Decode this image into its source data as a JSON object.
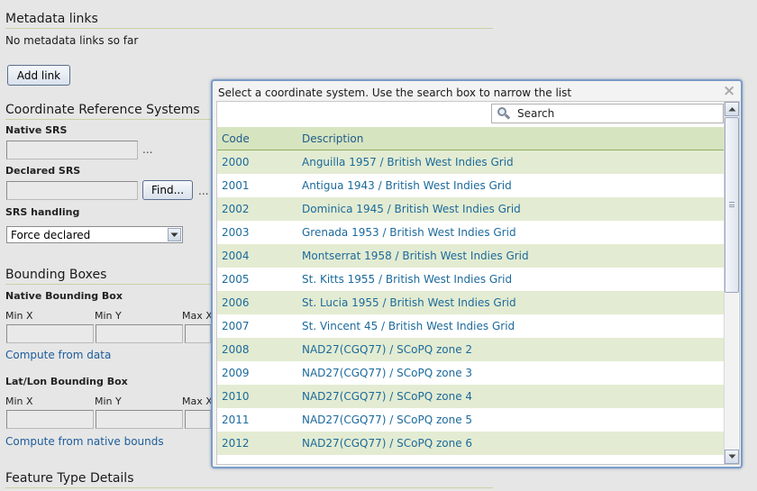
{
  "metadata": {
    "title": "Metadata links",
    "empty_text": "No metadata links so far",
    "add_button": "Add link"
  },
  "crs": {
    "title": "Coordinate Reference Systems",
    "native_label": "Native SRS",
    "native_suffix": "...",
    "declared_label": "Declared SRS",
    "find_button": "Find...",
    "declared_suffix": "...",
    "handling_label": "SRS handling",
    "handling_value": "Force declared"
  },
  "bbox": {
    "title": "Bounding Boxes",
    "native_label": "Native Bounding Box",
    "min_x": "Min X",
    "min_y": "Min Y",
    "max_x": "Max X",
    "compute_data_link": "Compute from data",
    "latlon_label": "Lat/Lon Bounding Box",
    "latlon_min_x": "Min X",
    "latlon_min_y": "Min Y",
    "latlon_max_x": "Max X",
    "compute_native_link": "Compute from native bounds"
  },
  "feature": {
    "title": "Feature Type Details"
  },
  "popup": {
    "title": "Select a coordinate system. Use the search box to narrow the list",
    "close_icon": "close-icon",
    "search_placeholder": "Search",
    "columns": {
      "code": "Code",
      "description": "Description"
    },
    "rows": [
      {
        "code": "2000",
        "description": "Anguilla 1957 / British West Indies Grid"
      },
      {
        "code": "2001",
        "description": "Antigua 1943 / British West Indies Grid"
      },
      {
        "code": "2002",
        "description": "Dominica 1945 / British West Indies Grid"
      },
      {
        "code": "2003",
        "description": "Grenada 1953 / British West Indies Grid"
      },
      {
        "code": "2004",
        "description": "Montserrat 1958 / British West Indies Grid"
      },
      {
        "code": "2005",
        "description": "St. Kitts 1955 / British West Indies Grid"
      },
      {
        "code": "2006",
        "description": "St. Lucia 1955 / British West Indies Grid"
      },
      {
        "code": "2007",
        "description": "St. Vincent 45 / British West Indies Grid"
      },
      {
        "code": "2008",
        "description": "NAD27(CGQ77) / SCoPQ zone 2"
      },
      {
        "code": "2009",
        "description": "NAD27(CGQ77) / SCoPQ zone 3"
      },
      {
        "code": "2010",
        "description": "NAD27(CGQ77) / SCoPQ zone 4"
      },
      {
        "code": "2011",
        "description": "NAD27(CGQ77) / SCoPQ zone 5"
      },
      {
        "code": "2012",
        "description": "NAD27(CGQ77) / SCoPQ zone 6"
      }
    ]
  },
  "colors": {
    "link": "#1c5d9c",
    "row_alt": "#e3ecd2",
    "header_bg": "#d7e4c0",
    "popup_border": "#7a9cc8"
  }
}
